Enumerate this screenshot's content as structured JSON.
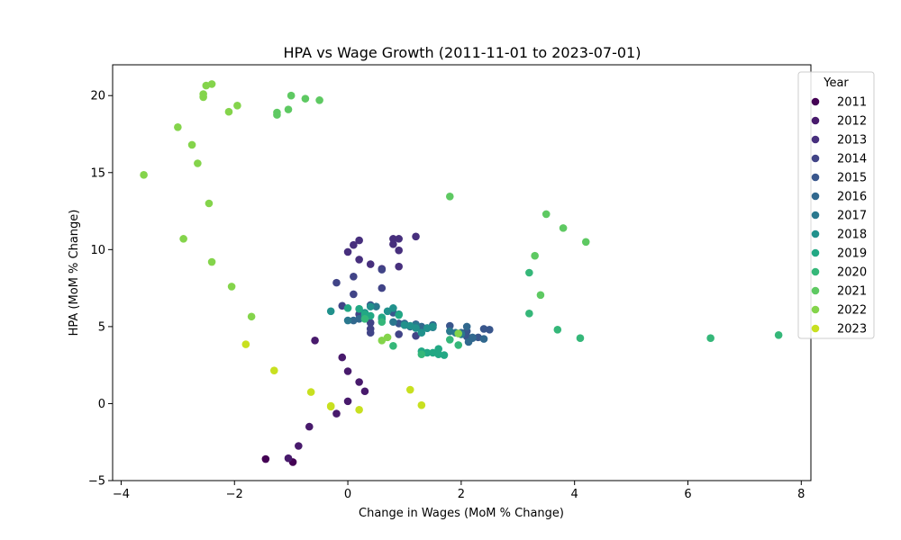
{
  "chart_data": {
    "type": "scatter",
    "title": "HPA vs Wage Growth (2011-11-01 to 2023-07-01)",
    "xlabel": "Change in Wages (MoM % Change)",
    "ylabel": "HPA (MoM % Change)",
    "xlim": [
      -4.15,
      8.17
    ],
    "ylim": [
      -5,
      22
    ],
    "xticks": [
      -4,
      -2,
      0,
      2,
      4,
      6,
      8
    ],
    "yticks": [
      -5,
      0,
      5,
      10,
      15,
      20
    ],
    "grid": false,
    "legend": {
      "title": "Year",
      "placement": "top-right, outside plot"
    },
    "series": [
      {
        "name": "2011",
        "color": "#440154",
        "points": [
          [
            -1.45,
            -3.6
          ],
          [
            -0.97,
            -3.8
          ]
        ]
      },
      {
        "name": "2012",
        "color": "#481a6c",
        "points": [
          [
            -1.05,
            -3.55
          ],
          [
            -0.87,
            -2.75
          ],
          [
            -0.68,
            -1.5
          ],
          [
            -0.2,
            -0.65
          ],
          [
            0.0,
            0.15
          ],
          [
            0.3,
            0.8
          ],
          [
            0.2,
            1.4
          ],
          [
            0.0,
            2.1
          ],
          [
            -0.1,
            3.0
          ],
          [
            -0.58,
            4.1
          ]
        ]
      },
      {
        "name": "2013",
        "color": "#472f7d",
        "points": [
          [
            0.2,
            9.35
          ],
          [
            0.0,
            9.85
          ],
          [
            0.1,
            10.3
          ],
          [
            0.2,
            10.6
          ],
          [
            0.8,
            10.35
          ],
          [
            0.8,
            10.7
          ],
          [
            0.9,
            10.7
          ],
          [
            1.2,
            10.85
          ],
          [
            0.9,
            9.95
          ],
          [
            0.4,
            9.05
          ],
          [
            0.6,
            8.75
          ],
          [
            0.9,
            8.9
          ]
        ]
      },
      {
        "name": "2014",
        "color": "#414487",
        "points": [
          [
            -0.2,
            7.85
          ],
          [
            0.1,
            8.25
          ],
          [
            0.6,
            8.7
          ],
          [
            0.6,
            7.5
          ],
          [
            0.1,
            7.1
          ],
          [
            -0.1,
            6.35
          ],
          [
            0.4,
            4.6
          ],
          [
            0.4,
            4.85
          ],
          [
            0.9,
            4.5
          ],
          [
            1.2,
            4.4
          ],
          [
            0.4,
            5.25
          ],
          [
            0.2,
            5.8
          ]
        ]
      },
      {
        "name": "2015",
        "color": "#39568c",
        "points": [
          [
            0.4,
            6.4
          ],
          [
            0.8,
            5.9
          ],
          [
            1.2,
            5.15
          ],
          [
            1.8,
            5.05
          ],
          [
            2.1,
            4.7
          ],
          [
            2.4,
            4.85
          ],
          [
            2.5,
            4.8
          ],
          [
            2.3,
            4.3
          ],
          [
            2.1,
            4.35
          ],
          [
            1.5,
            5.1
          ],
          [
            1.1,
            5.0
          ],
          [
            0.9,
            5.2
          ]
        ]
      },
      {
        "name": "2016",
        "color": "#31688e",
        "points": [
          [
            0.1,
            5.4
          ],
          [
            0.2,
            5.5
          ],
          [
            1.0,
            5.2
          ],
          [
            1.3,
            5.0
          ],
          [
            1.5,
            5.1
          ],
          [
            2.1,
            5.0
          ],
          [
            2.0,
            4.6
          ],
          [
            2.2,
            4.3
          ],
          [
            2.4,
            4.2
          ],
          [
            2.2,
            4.25
          ],
          [
            2.13,
            4.0
          ],
          [
            1.4,
            4.9
          ]
        ]
      },
      {
        "name": "2017",
        "color": "#2a788e",
        "points": [
          [
            0.0,
            5.4
          ],
          [
            0.3,
            5.6
          ],
          [
            0.5,
            6.3
          ],
          [
            0.6,
            5.5
          ],
          [
            0.8,
            5.3
          ],
          [
            1.0,
            5.1
          ],
          [
            1.2,
            5.1
          ],
          [
            1.4,
            4.9
          ],
          [
            1.5,
            4.95
          ],
          [
            1.8,
            4.7
          ],
          [
            1.9,
            4.6
          ],
          [
            2.0,
            4.5
          ]
        ]
      },
      {
        "name": "2018",
        "color": "#21918c",
        "points": [
          [
            -0.3,
            6.0
          ],
          [
            0.3,
            5.9
          ],
          [
            0.4,
            6.3
          ],
          [
            0.7,
            6.0
          ],
          [
            0.8,
            6.2
          ],
          [
            0.9,
            5.8
          ],
          [
            1.0,
            5.1
          ],
          [
            1.1,
            5.05
          ],
          [
            1.2,
            4.9
          ],
          [
            1.3,
            4.6
          ],
          [
            1.4,
            4.9
          ],
          [
            1.5,
            5.0
          ]
        ]
      },
      {
        "name": "2019",
        "color": "#22a884",
        "points": [
          [
            0.0,
            6.2
          ],
          [
            0.2,
            6.15
          ],
          [
            0.3,
            5.8
          ],
          [
            0.4,
            5.7
          ],
          [
            0.6,
            5.6
          ],
          [
            0.9,
            5.75
          ],
          [
            1.3,
            3.4
          ],
          [
            1.4,
            3.3
          ],
          [
            1.5,
            3.3
          ],
          [
            1.6,
            3.2
          ],
          [
            1.7,
            3.15
          ],
          [
            1.6,
            3.55
          ]
        ]
      },
      {
        "name": "2020",
        "color": "#35b779",
        "points": [
          [
            0.3,
            5.5
          ],
          [
            0.6,
            5.3
          ],
          [
            0.8,
            3.75
          ],
          [
            1.3,
            3.2
          ],
          [
            1.8,
            4.15
          ],
          [
            1.95,
            3.8
          ],
          [
            3.2,
            5.85
          ],
          [
            3.7,
            4.8
          ],
          [
            4.1,
            4.25
          ],
          [
            6.4,
            4.25
          ],
          [
            7.6,
            4.45
          ],
          [
            3.2,
            8.5
          ]
        ]
      },
      {
        "name": "2021",
        "color": "#5ec962",
        "points": [
          [
            3.3,
            9.6
          ],
          [
            3.5,
            12.3
          ],
          [
            3.8,
            11.4
          ],
          [
            4.2,
            10.5
          ],
          [
            1.8,
            13.45
          ],
          [
            3.4,
            7.05
          ],
          [
            -0.5,
            19.7
          ],
          [
            -0.75,
            19.8
          ],
          [
            -1.0,
            20.0
          ],
          [
            -1.05,
            19.1
          ],
          [
            -1.25,
            18.75
          ],
          [
            -1.25,
            18.9
          ]
        ]
      },
      {
        "name": "2022",
        "color": "#84d44b",
        "points": [
          [
            -2.55,
            19.9
          ],
          [
            -2.55,
            20.1
          ],
          [
            -2.5,
            20.65
          ],
          [
            -2.4,
            20.75
          ],
          [
            -2.1,
            18.95
          ],
          [
            -1.95,
            19.35
          ],
          [
            -3.0,
            17.95
          ],
          [
            -2.75,
            16.8
          ],
          [
            -2.65,
            15.6
          ],
          [
            -3.6,
            14.85
          ],
          [
            -2.45,
            13.0
          ],
          [
            -2.9,
            10.7
          ],
          [
            -2.4,
            9.2
          ],
          [
            -2.05,
            7.6
          ],
          [
            -1.7,
            5.65
          ],
          [
            0.6,
            4.1
          ],
          [
            0.7,
            4.3
          ],
          [
            1.95,
            4.55
          ]
        ]
      },
      {
        "name": "2023",
        "color": "#c8e020",
        "points": [
          [
            -1.8,
            3.85
          ],
          [
            -1.3,
            2.15
          ],
          [
            -0.65,
            0.75
          ],
          [
            -0.3,
            -0.15
          ],
          [
            -0.3,
            -0.2
          ],
          [
            0.2,
            -0.4
          ],
          [
            1.1,
            0.9
          ],
          [
            1.3,
            -0.1
          ]
        ]
      }
    ]
  }
}
